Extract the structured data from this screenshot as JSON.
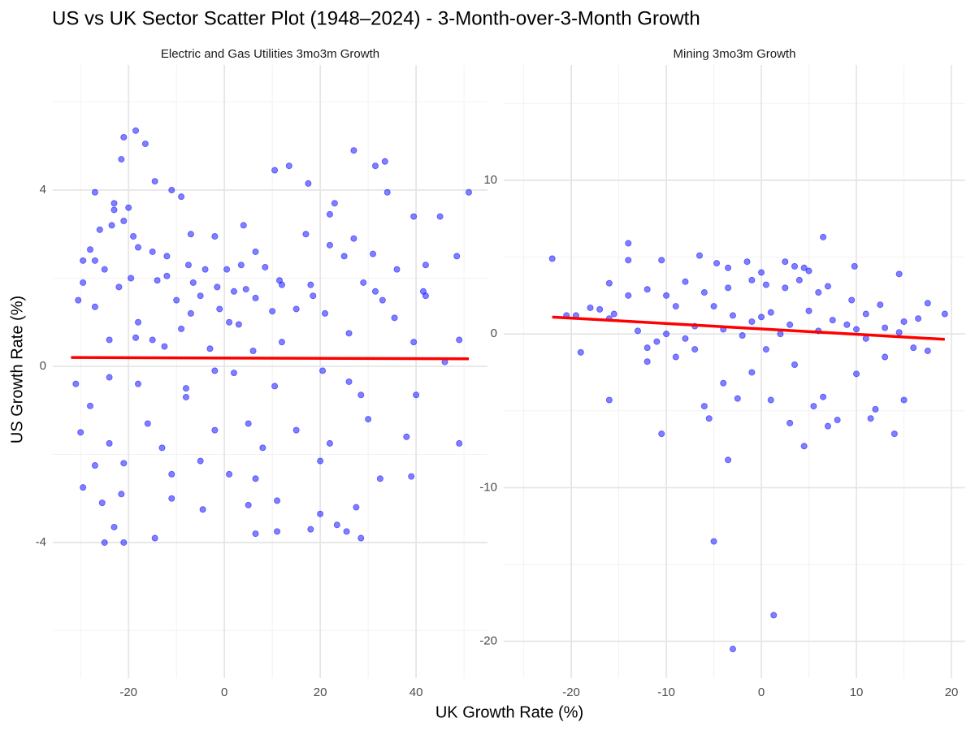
{
  "title": "US vs UK Sector Scatter Plot (1948–2024) - 3-Month-over-3-Month Growth",
  "x_label": "UK Growth Rate (%)",
  "y_label": "US Growth Rate (%)",
  "chart_data": [
    {
      "type": "scatter",
      "title": "Electric and Gas Utilities 3mo3m Growth",
      "color": "#0000ff",
      "grid": true,
      "xlim": [
        -35.8,
        54.9
      ],
      "ylim": [
        -7.08,
        6.84
      ],
      "xticks": [
        -20,
        0,
        20,
        40
      ],
      "yticks": [
        -4,
        0,
        4
      ],
      "xminor": [
        -30,
        -10,
        10,
        30,
        50
      ],
      "yminor": [
        -6,
        -2,
        2,
        6
      ],
      "trend": {
        "color": "#ff0000",
        "x": [
          -32,
          51
        ],
        "y": [
          0.2,
          0.17
        ]
      },
      "x": [
        -18.5,
        -21,
        -16.5,
        -21.5,
        27,
        33.5,
        31.5,
        13.5,
        10.5,
        -14.5,
        17.5,
        -27,
        -11,
        -9,
        34,
        51,
        -23,
        -20,
        -23,
        23,
        -26,
        -23.5,
        -21,
        39.5,
        45,
        22,
        4,
        -19,
        -7,
        -2,
        17,
        27,
        -18,
        -28,
        6.5,
        22,
        31,
        48.5,
        -29.5,
        -15,
        -12,
        25,
        -27,
        -7.5,
        -4,
        36,
        42,
        -25,
        -12,
        0.5,
        3.5,
        8.5,
        11.5,
        -29.5,
        -22,
        -19.5,
        -14,
        -6.5,
        -1.5,
        2,
        12,
        18,
        29,
        -30.5,
        -5,
        4.5,
        31.5,
        41.5,
        42,
        -27,
        -10,
        6.5,
        18.5,
        33,
        -7,
        -1,
        10,
        15,
        21,
        35.5,
        -18,
        -9,
        1,
        3,
        -12.5,
        12,
        26,
        -24,
        -18.5,
        -15,
        -3,
        6,
        -28,
        -31,
        -24,
        -18,
        -8,
        -2,
        2,
        10.5,
        20.5,
        26,
        -16,
        -8,
        5,
        15,
        28.5,
        40,
        -30,
        -24,
        -13,
        -2,
        8,
        22,
        30,
        38,
        -27,
        -21,
        -11,
        -5,
        1,
        6.5,
        20,
        32.5,
        39,
        -29.5,
        -21.5,
        -11,
        -4.5,
        5,
        11,
        20,
        27.5,
        -25.5,
        -23,
        -14.5,
        6.5,
        11,
        18,
        23.5,
        25.5,
        28.5,
        -25,
        -21,
        49,
        46,
        39.5,
        49
      ],
      "y": [
        5.35,
        5.2,
        5.05,
        4.7,
        4.9,
        4.65,
        4.55,
        4.55,
        4.45,
        4.2,
        4.15,
        3.95,
        4.0,
        3.85,
        3.95,
        3.95,
        3.7,
        3.6,
        3.55,
        3.7,
        3.1,
        3.2,
        3.3,
        3.4,
        3.4,
        3.45,
        3.2,
        2.95,
        3.0,
        2.95,
        3.0,
        2.9,
        2.7,
        2.65,
        2.6,
        2.75,
        2.55,
        2.5,
        2.4,
        2.6,
        2.5,
        2.5,
        2.4,
        2.3,
        2.2,
        2.2,
        2.3,
        2.2,
        2.05,
        2.2,
        2.3,
        2.25,
        1.95,
        1.9,
        1.8,
        2.0,
        1.95,
        1.9,
        1.8,
        1.7,
        1.85,
        1.85,
        1.9,
        1.5,
        1.6,
        1.75,
        1.7,
        1.7,
        1.6,
        1.35,
        1.5,
        1.55,
        1.6,
        1.5,
        1.2,
        1.3,
        1.25,
        1.3,
        1.2,
        1.1,
        1.0,
        0.85,
        1.0,
        0.95,
        0.45,
        0.55,
        0.75,
        0.6,
        0.65,
        0.6,
        0.4,
        0.35,
        -0.9,
        -0.4,
        -0.25,
        -0.4,
        -0.5,
        -0.1,
        -0.15,
        -0.45,
        -0.1,
        -0.35,
        -1.3,
        -0.7,
        -1.3,
        -1.45,
        -0.65,
        -0.65,
        -1.5,
        -1.75,
        -1.85,
        -1.45,
        -1.85,
        -1.75,
        -1.2,
        -1.6,
        -2.25,
        -2.2,
        -2.45,
        -2.15,
        -2.45,
        -2.55,
        -2.15,
        -2.55,
        -2.5,
        -2.75,
        -2.9,
        -3.0,
        -3.25,
        -3.15,
        -3.05,
        -3.35,
        -3.2,
        -3.1,
        -3.65,
        -3.9,
        -3.8,
        -3.75,
        -3.7,
        -3.6,
        -3.75,
        -3.9,
        -4.0,
        -4.0,
        -1.75,
        0.1,
        0.55,
        0.6
      ]
    },
    {
      "type": "scatter",
      "title": "Mining 3mo3m Growth",
      "color": "#0000ff",
      "grid": true,
      "xlim": [
        -27.1,
        21.45
      ],
      "ylim": [
        -22.4,
        17.5
      ],
      "xticks": [
        -20,
        -10,
        0,
        10,
        20
      ],
      "yticks": [
        -20,
        -10,
        0,
        10
      ],
      "xminor": [
        -25,
        -15,
        -5,
        5,
        15
      ],
      "yminor": [
        -15,
        -5,
        5,
        15
      ],
      "trend": {
        "color": "#ff0000",
        "x": [
          -22,
          19.3
        ],
        "y": [
          1.1,
          -0.35
        ]
      },
      "x": [
        -22,
        -14,
        -14,
        -16,
        -10.5,
        -6.5,
        -4.7,
        -3.5,
        -1.5,
        0,
        2.5,
        3.5,
        4.5,
        5,
        6.5,
        9.8,
        14.5,
        -20.5,
        -19.5,
        -17,
        -15.5,
        -14,
        -12,
        -10,
        -8,
        -6,
        -3.5,
        -1,
        0.5,
        2.5,
        4,
        6,
        7,
        9.5,
        11,
        12.5,
        16.5,
        17.5,
        19.3,
        -18,
        -16,
        -13,
        -10,
        -9,
        -7,
        -5,
        -3,
        -1,
        1,
        3,
        5,
        7.5,
        10,
        13,
        15,
        -19,
        -16,
        -12,
        -10.5,
        -9,
        -7,
        -6,
        -5.5,
        -5,
        -4,
        -3.5,
        -3,
        -2.5,
        -1,
        0.5,
        1,
        1.3,
        3,
        3.5,
        4.5,
        5.5,
        6.5,
        7,
        8,
        10,
        11.5,
        12,
        14,
        15,
        13,
        16,
        17.5,
        -11,
        -8,
        -2,
        2,
        6,
        11,
        14.5,
        0,
        -4,
        9,
        -12
      ],
      "y": [
        4.9,
        5.9,
        4.8,
        3.3,
        4.8,
        5.1,
        4.6,
        4.3,
        4.7,
        4.0,
        4.7,
        4.4,
        4.3,
        4.1,
        6.3,
        4.4,
        3.9,
        1.2,
        1.2,
        1.6,
        1.3,
        2.5,
        2.9,
        2.5,
        3.4,
        2.7,
        3.0,
        3.5,
        3.2,
        3.0,
        3.5,
        2.7,
        3.1,
        2.2,
        1.3,
        1.9,
        1.0,
        2.0,
        1.3,
        1.7,
        1.0,
        0.2,
        0.0,
        1.8,
        0.5,
        1.8,
        1.2,
        0.8,
        1.4,
        0.6,
        1.5,
        0.9,
        0.3,
        0.4,
        0.8,
        -1.2,
        -4.3,
        -1.8,
        -6.5,
        -1.5,
        -1.0,
        -4.7,
        -5.5,
        -13.5,
        -3.2,
        -8.2,
        -20.5,
        -4.2,
        -2.5,
        -1.0,
        -4.3,
        -18.3,
        -5.8,
        -2.0,
        -7.3,
        -4.7,
        -4.1,
        -6.0,
        -5.6,
        -2.6,
        -5.5,
        -4.9,
        -6.5,
        -4.3,
        -1.5,
        -0.9,
        -1.1,
        -0.5,
        -0.3,
        -0.1,
        0.0,
        0.2,
        -0.3,
        0.1,
        1.1,
        0.3,
        0.6,
        -0.9
      ]
    }
  ]
}
